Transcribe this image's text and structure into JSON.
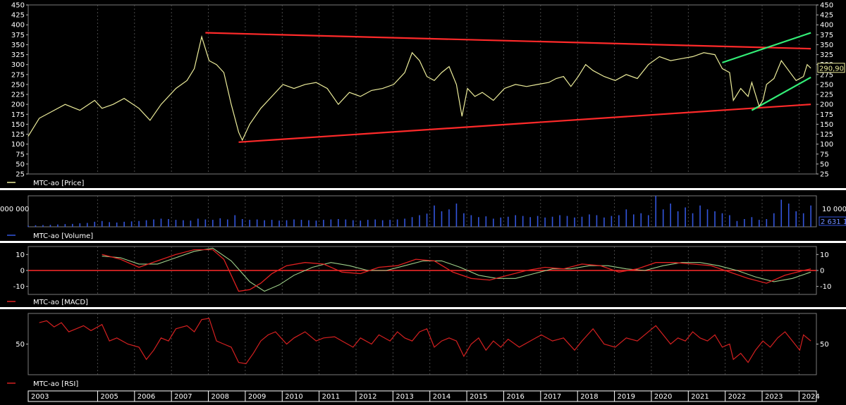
{
  "instrument": "MTC-ao",
  "x_axis": {
    "years": [
      "2003",
      "2005",
      "2006",
      "2007",
      "2008",
      "2009",
      "2010",
      "2011",
      "2012",
      "2013",
      "2014",
      "2015",
      "2016",
      "2017",
      "2018",
      "2019",
      "2020",
      "2021",
      "2022",
      "2023",
      "2024"
    ]
  },
  "colors": {
    "background": "#000000",
    "grid": "#5a5a5a",
    "price": "#ecec9a",
    "volume": "#3355dd",
    "macd": "#e02020",
    "signal": "#9ecf8a",
    "rsi": "#d42020",
    "trend_red": "#ff2a2a",
    "trend_green": "#33ee77",
    "separator": "#ffffff"
  },
  "chart_data": [
    {
      "type": "line",
      "panel": "price",
      "legend": "MTC-ao [Price]",
      "ylim": [
        25,
        450
      ],
      "yticks": [
        "25",
        "50",
        "75",
        "100",
        "125",
        "150",
        "175",
        "200",
        "225",
        "250",
        "275",
        "300",
        "325",
        "350",
        "375",
        "400",
        "425",
        "450"
      ],
      "last_value_label": "290,90",
      "series": [
        {
          "name": "MTC-ao [Price]",
          "x": [
            2003.0,
            2003.3,
            2003.6,
            2004.0,
            2004.4,
            2004.8,
            2005.0,
            2005.3,
            2005.6,
            2006.0,
            2006.3,
            2006.6,
            2007.0,
            2007.3,
            2007.5,
            2007.7,
            2007.9,
            2008.1,
            2008.3,
            2008.5,
            2008.7,
            2008.8,
            2009.0,
            2009.3,
            2009.6,
            2009.9,
            2010.2,
            2010.5,
            2010.8,
            2011.1,
            2011.4,
            2011.7,
            2012.0,
            2012.3,
            2012.6,
            2012.9,
            2013.2,
            2013.4,
            2013.6,
            2013.8,
            2014.0,
            2014.2,
            2014.4,
            2014.6,
            2014.75,
            2014.9,
            2015.1,
            2015.3,
            2015.6,
            2015.9,
            2016.2,
            2016.5,
            2016.8,
            2017.1,
            2017.3,
            2017.5,
            2017.7,
            2017.9,
            2018.1,
            2018.3,
            2018.6,
            2018.9,
            2019.2,
            2019.5,
            2019.8,
            2020.1,
            2020.4,
            2020.7,
            2021.0,
            2021.3,
            2021.6,
            2021.8,
            2022.0,
            2022.1,
            2022.3,
            2022.5,
            2022.6,
            2022.8,
            2022.9,
            2023.0,
            2023.2,
            2023.4,
            2023.6,
            2023.8,
            2024.0,
            2024.1,
            2024.2
          ],
          "values": [
            120,
            165,
            180,
            200,
            185,
            210,
            190,
            200,
            215,
            190,
            160,
            200,
            240,
            260,
            290,
            370,
            310,
            300,
            280,
            200,
            130,
            110,
            150,
            190,
            220,
            250,
            240,
            250,
            255,
            240,
            200,
            230,
            220,
            235,
            240,
            250,
            280,
            330,
            310,
            270,
            260,
            280,
            295,
            250,
            170,
            240,
            220,
            230,
            210,
            240,
            250,
            245,
            250,
            255,
            265,
            270,
            245,
            270,
            300,
            285,
            270,
            260,
            275,
            265,
            300,
            320,
            310,
            315,
            320,
            330,
            325,
            290,
            280,
            210,
            240,
            220,
            255,
            195,
            210,
            250,
            265,
            310,
            285,
            260,
            270,
            300,
            290.9
          ]
        }
      ],
      "trendlines": [
        {
          "color": "red",
          "from": [
            2007.8,
            380
          ],
          "to": [
            2024.2,
            340
          ]
        },
        {
          "color": "red",
          "from": [
            2008.7,
            105
          ],
          "to": [
            2024.2,
            200
          ]
        },
        {
          "color": "green",
          "from": [
            2021.8,
            305
          ],
          "to": [
            2024.2,
            380
          ]
        },
        {
          "color": "green",
          "from": [
            2022.6,
            185
          ],
          "to": [
            2024.2,
            268
          ]
        }
      ]
    },
    {
      "type": "bar",
      "panel": "volume",
      "legend": "MTC-ao [Volume]",
      "left_tick": "000 000",
      "right_tick": "10 000",
      "last_value_label": "2 631 1",
      "ylim": [
        0,
        16000
      ],
      "series": [
        {
          "name": "MTC-ao [Volume]",
          "x": [
            2003.0,
            2003.2,
            2003.4,
            2003.6,
            2003.8,
            2004.0,
            2004.2,
            2004.4,
            2004.6,
            2004.8,
            2005.0,
            2005.2,
            2005.4,
            2005.6,
            2005.8,
            2006.0,
            2006.2,
            2006.4,
            2006.6,
            2006.8,
            2007.0,
            2007.2,
            2007.4,
            2007.6,
            2007.8,
            2008.0,
            2008.2,
            2008.4,
            2008.6,
            2008.8,
            2009.0,
            2009.2,
            2009.4,
            2009.6,
            2009.8,
            2010.0,
            2010.2,
            2010.4,
            2010.6,
            2010.8,
            2011.0,
            2011.2,
            2011.4,
            2011.6,
            2011.8,
            2012.0,
            2012.2,
            2012.4,
            2012.6,
            2012.8,
            2013.0,
            2013.2,
            2013.4,
            2013.6,
            2013.8,
            2014.0,
            2014.2,
            2014.4,
            2014.6,
            2014.8,
            2015.0,
            2015.2,
            2015.4,
            2015.6,
            2015.8,
            2016.0,
            2016.2,
            2016.4,
            2016.6,
            2016.8,
            2017.0,
            2017.2,
            2017.4,
            2017.6,
            2017.8,
            2018.0,
            2018.2,
            2018.4,
            2018.6,
            2018.8,
            2019.0,
            2019.2,
            2019.4,
            2019.6,
            2019.8,
            2020.0,
            2020.2,
            2020.4,
            2020.6,
            2020.8,
            2021.0,
            2021.2,
            2021.4,
            2021.6,
            2021.8,
            2022.0,
            2022.2,
            2022.4,
            2022.6,
            2022.8,
            2023.0,
            2023.2,
            2023.4,
            2023.6,
            2023.8,
            2024.0,
            2024.2
          ],
          "values": [
            600,
            800,
            900,
            1000,
            1200,
            1400,
            1500,
            1800,
            2000,
            2600,
            3000,
            2400,
            2200,
            2600,
            2800,
            3000,
            3400,
            3800,
            4200,
            4000,
            3600,
            3400,
            3200,
            4200,
            3800,
            3600,
            4400,
            3800,
            6000,
            4000,
            3600,
            3800,
            3400,
            3600,
            3200,
            3400,
            3800,
            3600,
            3400,
            3200,
            3600,
            3800,
            4000,
            3800,
            3400,
            3200,
            3600,
            3800,
            3400,
            3600,
            3800,
            4200,
            5000,
            6000,
            6800,
            11000,
            8000,
            9000,
            12000,
            7000,
            6000,
            5000,
            5400,
            4200,
            4800,
            5200,
            6000,
            5600,
            5000,
            5600,
            4800,
            5200,
            6000,
            5600,
            4800,
            5200,
            6400,
            6000,
            4800,
            5600,
            6000,
            9000,
            6400,
            7000,
            6000,
            16000,
            9000,
            12000,
            8000,
            10000,
            7000,
            11000,
            9000,
            8000,
            7000,
            6000,
            3000,
            4000,
            5000,
            3600,
            4000,
            7000,
            14000,
            12000,
            8000,
            7000,
            11000
          ]
        }
      ]
    },
    {
      "type": "line",
      "panel": "macd",
      "legend": "MTC-ao [MACD]",
      "ylim": [
        -15,
        15
      ],
      "yticks": [
        "10",
        "0",
        "-10"
      ],
      "series": [
        {
          "name": "MTC-ao [MACD]",
          "x": [
            2005.0,
            2005.5,
            2006.0,
            2006.5,
            2007.0,
            2007.5,
            2008.0,
            2008.3,
            2008.7,
            2009.0,
            2009.3,
            2009.6,
            2010.0,
            2010.5,
            2011.0,
            2011.5,
            2012.0,
            2012.5,
            2013.0,
            2013.5,
            2014.0,
            2014.5,
            2015.0,
            2015.5,
            2016.0,
            2016.5,
            2017.0,
            2017.5,
            2018.0,
            2018.5,
            2019.0,
            2019.5,
            2020.0,
            2020.5,
            2021.0,
            2021.5,
            2022.0,
            2022.5,
            2023.0,
            2023.5,
            2024.0,
            2024.2
          ],
          "values": [
            10,
            7,
            2,
            6,
            10,
            13,
            13,
            7,
            -13,
            -12,
            -8,
            -2,
            3,
            5,
            4,
            -1,
            -2,
            2,
            3,
            7,
            6,
            -1,
            -5,
            -6,
            -3,
            0,
            2,
            1,
            4,
            3,
            -1,
            1,
            5,
            5,
            4,
            3,
            -1,
            -5,
            -8,
            -3,
            0,
            1
          ]
        },
        {
          "name": "Signal",
          "x": [
            2005.0,
            2005.5,
            2006.0,
            2006.5,
            2007.0,
            2007.5,
            2008.0,
            2008.5,
            2009.0,
            2009.4,
            2009.8,
            2010.2,
            2010.7,
            2011.2,
            2011.7,
            2012.2,
            2012.7,
            2013.2,
            2013.7,
            2014.2,
            2014.7,
            2015.2,
            2015.7,
            2016.2,
            2016.7,
            2017.2,
            2017.7,
            2018.2,
            2018.7,
            2019.2,
            2019.7,
            2020.2,
            2020.7,
            2021.2,
            2021.7,
            2022.2,
            2022.7,
            2023.2,
            2023.7,
            2024.2
          ],
          "values": [
            9,
            8,
            4,
            4,
            8,
            12,
            14,
            6,
            -7,
            -13,
            -9,
            -3,
            2,
            5,
            3,
            0,
            0,
            3,
            6,
            6,
            2,
            -3,
            -5,
            -5,
            -2,
            1,
            1,
            3,
            3,
            1,
            0,
            3,
            5,
            5,
            3,
            0,
            -4,
            -7,
            -5,
            -1
          ]
        }
      ]
    },
    {
      "type": "line",
      "panel": "rsi",
      "legend": "MTC-ao [RSI]",
      "ylim": [
        0,
        100
      ],
      "yticks": [
        "50"
      ],
      "series": [
        {
          "name": "MTC-ao [RSI]",
          "x": [
            2003.3,
            2003.5,
            2003.7,
            2003.9,
            2004.1,
            2004.3,
            2004.5,
            2004.7,
            2005.0,
            2005.2,
            2005.4,
            2005.7,
            2006.0,
            2006.2,
            2006.4,
            2006.6,
            2006.8,
            2007.0,
            2007.3,
            2007.5,
            2007.7,
            2007.9,
            2008.1,
            2008.3,
            2008.5,
            2008.7,
            2008.9,
            2009.1,
            2009.3,
            2009.5,
            2009.7,
            2010.0,
            2010.2,
            2010.5,
            2010.8,
            2011.0,
            2011.3,
            2011.5,
            2011.8,
            2012.0,
            2012.3,
            2012.5,
            2012.8,
            2013.0,
            2013.2,
            2013.4,
            2013.6,
            2013.8,
            2014.0,
            2014.2,
            2014.4,
            2014.6,
            2014.8,
            2015.0,
            2015.2,
            2015.4,
            2015.6,
            2015.8,
            2016.0,
            2016.3,
            2016.6,
            2016.9,
            2017.2,
            2017.5,
            2017.8,
            2018.0,
            2018.3,
            2018.6,
            2018.9,
            2019.2,
            2019.5,
            2019.8,
            2020.0,
            2020.2,
            2020.4,
            2020.6,
            2020.8,
            2021.0,
            2021.2,
            2021.4,
            2021.6,
            2021.8,
            2022.0,
            2022.1,
            2022.3,
            2022.5,
            2022.7,
            2022.9,
            2023.1,
            2023.3,
            2023.5,
            2023.7,
            2023.9,
            2024.0,
            2024.2
          ],
          "values": [
            85,
            88,
            78,
            85,
            70,
            75,
            80,
            72,
            82,
            55,
            60,
            50,
            45,
            25,
            40,
            60,
            55,
            75,
            80,
            70,
            90,
            92,
            55,
            50,
            45,
            20,
            18,
            35,
            55,
            65,
            70,
            50,
            60,
            70,
            55,
            60,
            62,
            55,
            45,
            60,
            50,
            65,
            55,
            70,
            60,
            55,
            70,
            75,
            45,
            55,
            60,
            55,
            30,
            50,
            60,
            40,
            55,
            45,
            58,
            45,
            55,
            65,
            55,
            60,
            40,
            55,
            75,
            50,
            45,
            60,
            55,
            70,
            80,
            65,
            50,
            60,
            55,
            70,
            60,
            55,
            65,
            45,
            50,
            25,
            35,
            20,
            40,
            55,
            45,
            60,
            70,
            55,
            40,
            65,
            55
          ]
        }
      ]
    }
  ]
}
